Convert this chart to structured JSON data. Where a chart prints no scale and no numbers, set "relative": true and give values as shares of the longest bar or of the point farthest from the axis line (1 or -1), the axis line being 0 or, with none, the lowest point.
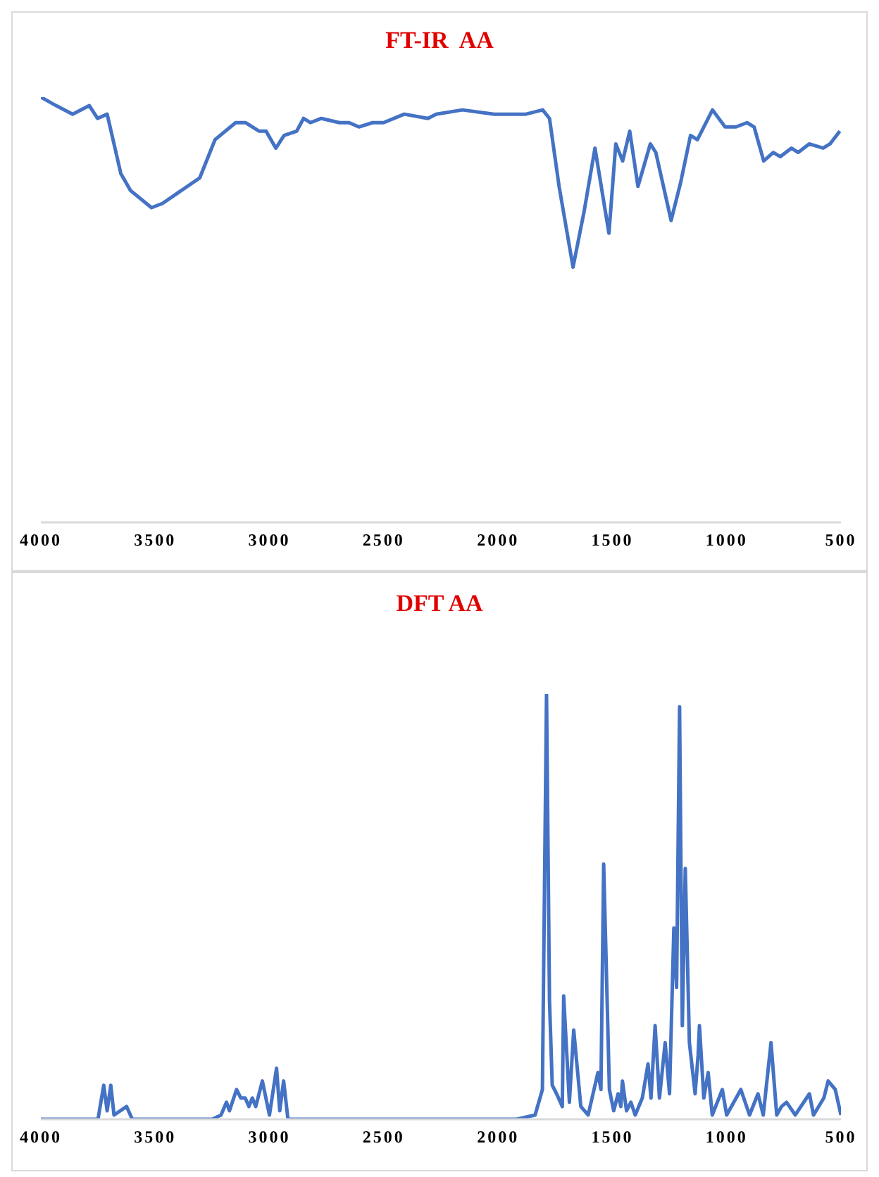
{
  "chart_data": [
    {
      "type": "line",
      "title": "FT-IR  AA",
      "relative": true,
      "color": "#4472c4",
      "xlim": [
        4000,
        500
      ],
      "xticks": [
        4000,
        3500,
        3000,
        2500,
        2000,
        1500,
        1000,
        500
      ],
      "x": [
        4000,
        3933,
        3861,
        3788,
        3752,
        3710,
        3650,
        3607,
        3516,
        3468,
        3305,
        3238,
        3148,
        3105,
        3045,
        3015,
        2972,
        2936,
        2881,
        2851,
        2821,
        2773,
        2694,
        2652,
        2609,
        2549,
        2501,
        2410,
        2307,
        2271,
        2156,
        2017,
        1878,
        1805,
        1775,
        1733,
        1672,
        1624,
        1576,
        1515,
        1485,
        1455,
        1424,
        1388,
        1334,
        1310,
        1243,
        1201,
        1158,
        1128,
        1062,
        1007,
        959,
        911,
        880,
        838,
        796,
        765,
        717,
        687,
        639,
        578,
        548,
        505
      ],
      "values": [
        1.0,
        0.98,
        0.96,
        0.98,
        0.95,
        0.96,
        0.82,
        0.78,
        0.74,
        0.75,
        0.81,
        0.9,
        0.94,
        0.94,
        0.92,
        0.92,
        0.88,
        0.91,
        0.92,
        0.95,
        0.94,
        0.95,
        0.94,
        0.94,
        0.93,
        0.94,
        0.94,
        0.96,
        0.95,
        0.96,
        0.97,
        0.96,
        0.96,
        0.97,
        0.95,
        0.79,
        0.6,
        0.73,
        0.88,
        0.68,
        0.89,
        0.85,
        0.92,
        0.79,
        0.89,
        0.87,
        0.71,
        0.8,
        0.91,
        0.9,
        0.97,
        0.93,
        0.93,
        0.94,
        0.93,
        0.85,
        0.87,
        0.86,
        0.88,
        0.87,
        0.89,
        0.88,
        0.89,
        0.92
      ]
    },
    {
      "type": "line",
      "title": "DFT AA",
      "relative": true,
      "color": "#4472c4",
      "xlim": [
        4000,
        500
      ],
      "xticks": [
        4000,
        3500,
        3000,
        2500,
        2000,
        1500,
        1000,
        500
      ],
      "x": [
        4000,
        3750,
        3725,
        3710,
        3694,
        3680,
        3625,
        3600,
        3250,
        3212,
        3188,
        3175,
        3144,
        3125,
        3106,
        3090,
        3075,
        3060,
        3031,
        3000,
        2969,
        2955,
        2938,
        2919,
        1919,
        1838,
        1806,
        1788,
        1775,
        1763,
        1744,
        1719,
        1713,
        1688,
        1669,
        1638,
        1606,
        1563,
        1550,
        1538,
        1513,
        1494,
        1475,
        1463,
        1456,
        1438,
        1419,
        1400,
        1369,
        1344,
        1331,
        1313,
        1294,
        1269,
        1250,
        1231,
        1219,
        1206,
        1194,
        1181,
        1163,
        1138,
        1125,
        1119,
        1100,
        1081,
        1063,
        1019,
        1000,
        938,
        900,
        863,
        840,
        806,
        781,
        760,
        738,
        700,
        638,
        620,
        575,
        556,
        525,
        500
      ],
      "values": [
        0,
        0,
        0.08,
        0.02,
        0.08,
        0.01,
        0.03,
        0,
        0,
        0.01,
        0.04,
        0.02,
        0.07,
        0.05,
        0.05,
        0.03,
        0.05,
        0.03,
        0.09,
        0.01,
        0.12,
        0.02,
        0.09,
        0,
        0,
        0.01,
        0.07,
        1.0,
        0.28,
        0.08,
        0.06,
        0.03,
        0.29,
        0.04,
        0.21,
        0.03,
        0.01,
        0.11,
        0.07,
        0.6,
        0.07,
        0.02,
        0.06,
        0.03,
        0.09,
        0.02,
        0.04,
        0.01,
        0.05,
        0.13,
        0.05,
        0.22,
        0.05,
        0.18,
        0.06,
        0.45,
        0.31,
        0.97,
        0.22,
        0.59,
        0.18,
        0.06,
        0.15,
        0.22,
        0.05,
        0.11,
        0.01,
        0.07,
        0.01,
        0.07,
        0.01,
        0.06,
        0.01,
        0.18,
        0.01,
        0.03,
        0.04,
        0.01,
        0.06,
        0.01,
        0.05,
        0.09,
        0.07,
        0.01
      ]
    }
  ]
}
